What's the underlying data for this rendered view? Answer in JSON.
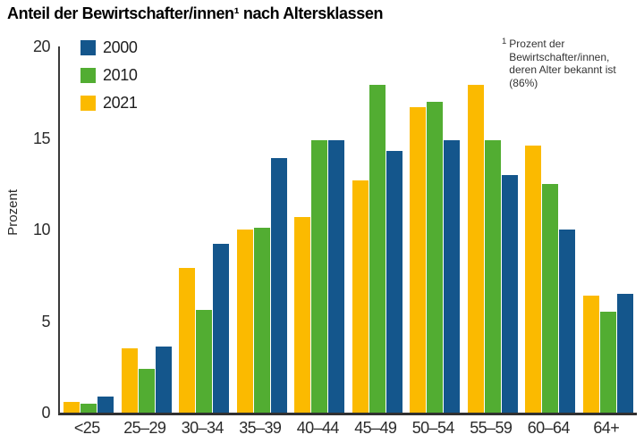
{
  "title": "Anteil der Bewirtschafter/innen¹ nach Altersklassen",
  "footnote": {
    "sup": "1",
    "text": "Prozent der Bewirtschafter/innen, deren Alter bekannt ist (86%)"
  },
  "chart_data": {
    "type": "bar",
    "title": "Anteil der Bewirtschafter/innen nach Altersklassen",
    "xlabel": "",
    "ylabel": "Prozent",
    "ylim": [
      0,
      20
    ],
    "yticks": [
      0,
      5,
      10,
      15,
      20
    ],
    "grid": false,
    "legend_position": "top-left",
    "bar_group_order": [
      "2021",
      "2010",
      "2000"
    ],
    "categories": [
      "<25",
      "25–29",
      "30–34",
      "35–39",
      "40–44",
      "45–49",
      "50–54",
      "55–59",
      "60–64",
      "64+"
    ],
    "series": [
      {
        "name": "2000",
        "color": "#14568c",
        "values": [
          0.9,
          3.6,
          9.2,
          13.9,
          14.9,
          14.3,
          14.9,
          13.0,
          10.0,
          6.5
        ]
      },
      {
        "name": "2010",
        "color": "#52ad32",
        "values": [
          0.5,
          2.4,
          5.6,
          10.1,
          14.9,
          17.9,
          17.0,
          14.9,
          12.5,
          5.5
        ]
      },
      {
        "name": "2021",
        "color": "#fbba00",
        "values": [
          0.6,
          3.5,
          7.9,
          10.0,
          10.7,
          12.7,
          16.7,
          17.9,
          14.6,
          6.4
        ]
      }
    ],
    "axis_color": "#3a3a3a"
  }
}
